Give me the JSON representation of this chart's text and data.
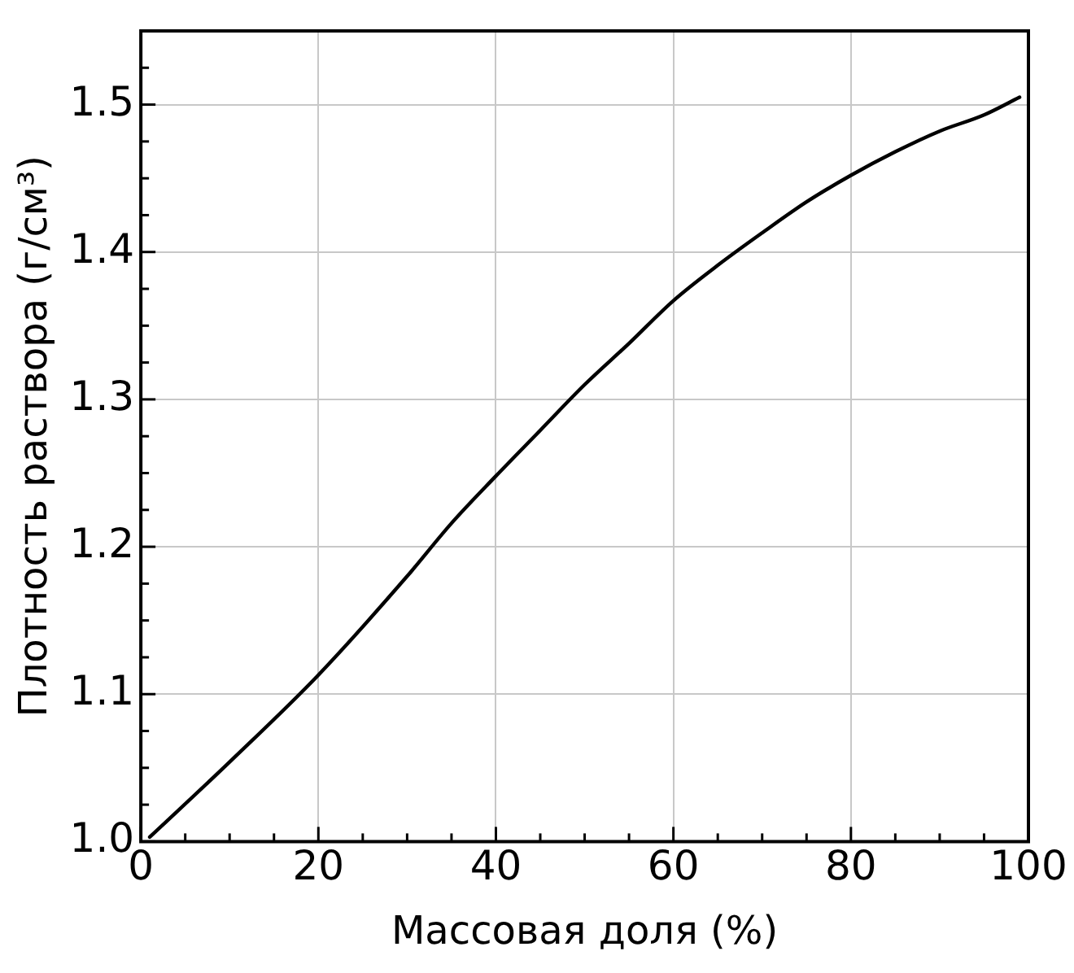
{
  "chart_data": {
    "type": "line",
    "xlabel": "Массовая доля (%)",
    "ylabel": "Плотность раствора (г/см³)",
    "x": [
      1,
      10,
      20,
      30,
      35,
      40,
      45,
      50,
      55,
      60,
      65,
      70,
      75,
      80,
      85,
      90,
      95,
      99
    ],
    "series": [
      {
        "color": "#000000",
        "values": [
          1.003,
          1.054,
          1.113,
          1.18,
          1.216,
          1.248,
          1.279,
          1.31,
          1.338,
          1.367,
          1.391,
          1.413,
          1.434,
          1.452,
          1.468,
          1.482,
          1.493,
          1.505
        ]
      }
    ],
    "xlim": [
      0,
      100
    ],
    "xticks": [
      0,
      {
        "value": 5,
        "label": null
      },
      20,
      {
        "value": 10,
        "label": null
      },
      {
        "value": 15,
        "label": null
      },
      {
        "value": 25,
        "label": null
      },
      {
        "value": 30,
        "label": null
      },
      {
        "value": 35,
        "label": null
      },
      40,
      {
        "value": 45,
        "label": null
      },
      {
        "value": 50,
        "label": null
      },
      {
        "value": 55,
        "label": null
      },
      60,
      {
        "value": 65,
        "label": null
      },
      {
        "value": 70,
        "label": null
      },
      {
        "value": 75,
        "label": null
      },
      80,
      {
        "value": 85,
        "label": null
      },
      {
        "value": 90,
        "label": null
      },
      {
        "value": 95,
        "label": null
      },
      100
    ],
    "ylim": [
      1.0,
      1.55
    ],
    "yticks": [
      {
        "value": 1.0,
        "label": "1.0"
      },
      {
        "value": 1.025,
        "label": null
      },
      {
        "value": 1.05,
        "label": null
      },
      {
        "value": 1.075,
        "label": null
      },
      1.1,
      {
        "value": 1.125,
        "label": null
      },
      {
        "value": 1.15,
        "label": null
      },
      {
        "value": 1.175,
        "label": null
      },
      1.2,
      {
        "value": 1.225,
        "label": null
      },
      {
        "value": 1.25,
        "label": null
      },
      {
        "value": 1.275,
        "label": null
      },
      1.3,
      {
        "value": 1.325,
        "label": null
      },
      {
        "value": 1.35,
        "label": null
      },
      {
        "value": 1.375,
        "label": null
      },
      1.4,
      {
        "value": 1.425,
        "label": null
      },
      {
        "value": 1.45,
        "label": null
      },
      {
        "value": 1.475,
        "label": null
      },
      1.5,
      {
        "value": 1.525,
        "label": null
      }
    ],
    "grid": true,
    "legend": false,
    "marker": "none",
    "line_style": "solid"
  }
}
